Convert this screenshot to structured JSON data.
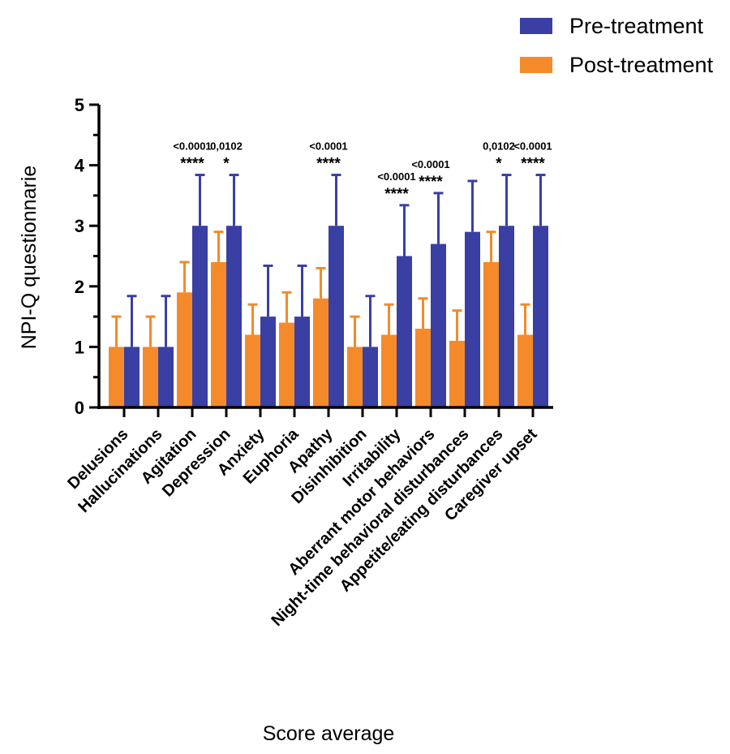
{
  "chart_data": {
    "type": "bar",
    "xlabel": "Score average",
    "ylabel": "NPI-Q questionnarie",
    "ylim": [
      0,
      5
    ],
    "yticks": [
      0,
      1,
      2,
      3,
      4,
      5
    ],
    "legend_position": "top-right",
    "categories": [
      "Delusions",
      "Hallucinations",
      "Agitation",
      "Depression",
      "Anxiety",
      "Euphoria",
      "Apathy",
      "Disinhibition",
      "Irritability",
      "Aberrant motor behaviors",
      "Night-time behavioral disturbances",
      "Appetite/eating disturbances",
      "Caregiver upset"
    ],
    "series": [
      {
        "name": "Post-treatment",
        "color": "#F58A2A",
        "values": [
          1.0,
          1.0,
          1.9,
          2.4,
          1.2,
          1.4,
          1.8,
          1.0,
          1.2,
          1.3,
          1.1,
          2.4,
          1.2
        ],
        "error": [
          0.5,
          0.5,
          0.5,
          0.5,
          0.5,
          0.5,
          0.5,
          0.5,
          0.5,
          0.5,
          0.5,
          0.5,
          0.5
        ]
      },
      {
        "name": "Pre-treatment",
        "color": "#3A3FA3",
        "values": [
          1.0,
          1.0,
          3.0,
          3.0,
          1.5,
          1.5,
          3.0,
          1.0,
          2.5,
          2.7,
          2.9,
          3.0,
          3.0
        ],
        "error": [
          0.84,
          0.84,
          0.84,
          0.84,
          0.84,
          0.84,
          0.84,
          0.84,
          0.84,
          0.84,
          0.84,
          0.84,
          0.84
        ]
      }
    ],
    "annotations": [
      {
        "category": "Agitation",
        "pvalue": "<0.0001",
        "stars": "****"
      },
      {
        "category": "Depression",
        "pvalue": "0,0102",
        "stars": "*"
      },
      {
        "category": "Apathy",
        "pvalue": "<0.0001",
        "stars": "****"
      },
      {
        "category": "Irritability",
        "pvalue": "<0.0001",
        "stars": "****"
      },
      {
        "category": "Aberrant motor behaviors",
        "pvalue": "<0.0001",
        "stars": "****"
      },
      {
        "category": "Appetite/eating disturbances",
        "pvalue": "0,0102",
        "stars": "*"
      },
      {
        "category": "Caregiver upset",
        "pvalue": "<0.0001",
        "stars": "****"
      }
    ]
  }
}
